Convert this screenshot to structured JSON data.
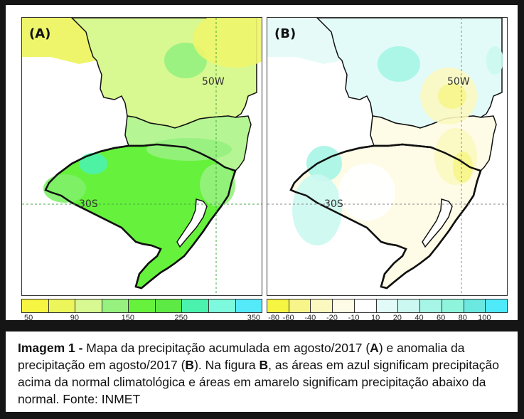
{
  "chart_data": [
    {
      "type": "heatmap",
      "panel_label": "(A)",
      "title": "Precipitação acumulada em agosto/2017",
      "grid_labels": {
        "longitude": "50W",
        "latitude": "30S"
      },
      "colorbar": {
        "tick_labels": [
          "50",
          "90",
          "150",
          "250",
          "350"
        ],
        "colors": [
          "#f5f542",
          "#ecf55a",
          "#d8f891",
          "#96f17e",
          "#66f23c",
          "#5eea44",
          "#4bf2ae",
          "#7dfadd",
          "#55eafa"
        ]
      },
      "regions": [
        {
          "area": "northern Paraná",
          "class": "50-90",
          "color": "#eef56a"
        },
        {
          "area": "central Paraná / Santa Catarina",
          "class": "90-150",
          "color": "#d8f891"
        },
        {
          "area": "Rio Grande do Sul",
          "class": "150-250",
          "color": "#66f23c"
        },
        {
          "area": "western Rio Grande do Sul spot",
          "class": "250-350",
          "color": "#4bf2ae"
        }
      ]
    },
    {
      "type": "heatmap",
      "panel_label": "(B)",
      "title": "Anomalia da precipitação em agosto/2017",
      "grid_labels": {
        "longitude": "50W",
        "latitude": "30S"
      },
      "colorbar": {
        "tick_labels": [
          "-80",
          "-60",
          "-40",
          "-20",
          "-10",
          "10",
          "20",
          "40",
          "60",
          "80",
          "100"
        ],
        "colors": [
          "#f5f542",
          "#f7f58a",
          "#fbf8c0",
          "#fefbe6",
          "#ffffff",
          "#e2fbf8",
          "#cbf8f0",
          "#a6f5e6",
          "#8ef5dc",
          "#6be8e0",
          "#4feafa"
        ]
      },
      "regions": [
        {
          "area": "western Paraná",
          "class": "10-40",
          "color": "#cbf8f0"
        },
        {
          "area": "eastern Paraná / Santa Catarina",
          "class": "-40 to -20",
          "color": "#fbf8c0"
        },
        {
          "area": "western Rio Grande do Sul",
          "class": "20-60",
          "color": "#a6f5e6"
        },
        {
          "area": "central Rio Grande do Sul",
          "class": "-20 to -10",
          "color": "#fefbe6"
        }
      ]
    }
  ],
  "caption": {
    "prefix": "Imagem 1 -",
    "part1": " Mapa da precipitação acumulada em agosto/2017 (",
    "A": "A",
    "part2": ") e anomalia da precipitação em agosto/2017 (",
    "B1": "B",
    "part3": "). Na figura ",
    "B2": "B",
    "part4": ", as áreas em azul significam precipitação acima da normal climatológica e áreas em amarelo significam precipitação abaixo da normal. Fonte: INMET"
  }
}
